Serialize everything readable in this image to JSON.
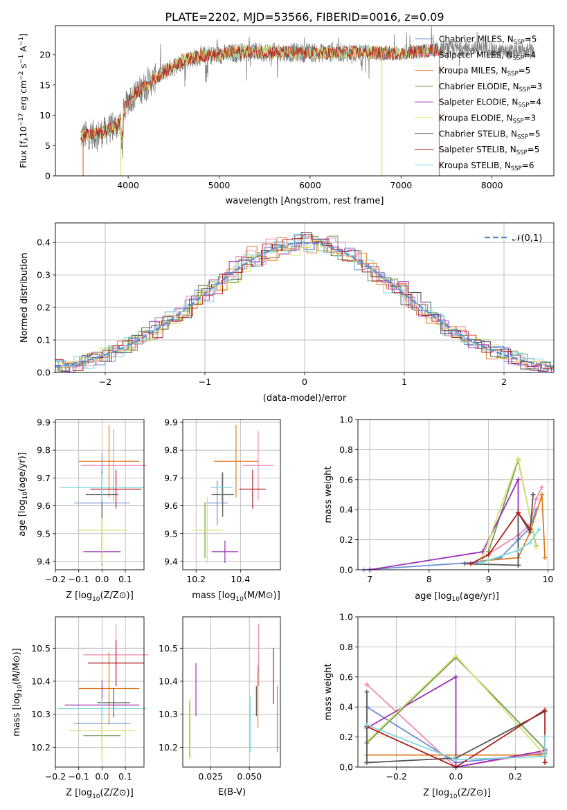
{
  "title": "PLATE=2202, MJD=53566, FIBERID=0016, z=0.09",
  "colors": {
    "Chabrier MILES": "#6b8fd6",
    "Salpeter MILES": "#f08ab4",
    "Kroupa MILES": "#e07a1f",
    "Chabrier ELODIE": "#6a9a55",
    "Salpeter ELODIE": "#9b2fb5",
    "Kroupa ELODIE": "#d8e070",
    "Chabrier STELIB": "#555555",
    "Salpeter STELIB": "#b01c1c",
    "Kroupa STELIB": "#7fd8de"
  },
  "chart_data": [
    {
      "type": "line",
      "id": "spectrum",
      "xlabel": "wavelength [Angstrom, rest frame]",
      "ylabel": "Flux [f_λ10^-17 erg cm^-2 s^-1 A^-1]",
      "xlim": [
        3200,
        8680
      ],
      "ylim": [
        0,
        24.8
      ],
      "xticks": [
        4000,
        5000,
        6000,
        7000,
        8000
      ],
      "yticks": [
        0,
        5,
        10,
        15,
        20
      ],
      "legend_position": "top-right",
      "series": [
        {
          "name": "Chabrier MILES",
          "nssp": 5
        },
        {
          "name": "Salpeter MILES",
          "nssp": 4
        },
        {
          "name": "Kroupa MILES",
          "nssp": 5
        },
        {
          "name": "Chabrier ELODIE",
          "nssp": 3
        },
        {
          "name": "Salpeter ELODIE",
          "nssp": 4
        },
        {
          "name": "Kroupa ELODIE",
          "nssp": 3
        },
        {
          "name": "Chabrier STELIB",
          "nssp": 5
        },
        {
          "name": "Salpeter STELIB",
          "nssp": 5
        },
        {
          "name": "Kroupa STELIB",
          "nssp": 6
        }
      ],
      "continuum": [
        [
          3500,
          6.6
        ],
        [
          3700,
          7.0
        ],
        [
          3900,
          8.5
        ],
        [
          4000,
          12.5
        ],
        [
          4200,
          15.0
        ],
        [
          4400,
          17.2
        ],
        [
          4600,
          19.0
        ],
        [
          4800,
          19.8
        ],
        [
          5000,
          20.0
        ],
        [
          5300,
          20.5
        ],
        [
          5600,
          20.4
        ],
        [
          5900,
          20.3
        ],
        [
          6200,
          20.3
        ],
        [
          6600,
          20.4
        ],
        [
          7000,
          20.2
        ],
        [
          7200,
          20.5
        ],
        [
          7400,
          20.8
        ],
        [
          7500,
          21.0
        ]
      ],
      "data_extent": [
        3480,
        8460
      ]
    },
    {
      "type": "step",
      "id": "residuals",
      "xlabel": "(data-model)/error",
      "ylabel": "Normed distribution",
      "xlim": [
        -2.5,
        2.5
      ],
      "ylim": [
        0,
        0.46
      ],
      "xticks": [
        -2,
        -1,
        0,
        1,
        2
      ],
      "yticks": [
        0.0,
        0.1,
        0.2,
        0.3,
        0.4
      ],
      "grid": true,
      "legend": "𝒩(0,1)",
      "legend_position": "top-right",
      "reference": "normal(0,1) dashed"
    },
    {
      "type": "errorbar",
      "id": "age_vs_Z",
      "xlabel": "Z [log10(Z/Z⊙)]",
      "ylabel": "age [log10(age/yr)]",
      "xlim": [
        -0.2,
        0.18
      ],
      "ylim": [
        9.37,
        9.91
      ],
      "xticks": [
        -0.2,
        -0.1,
        0.0,
        0.1
      ],
      "yticks": [
        9.4,
        9.5,
        9.6,
        9.7,
        9.8,
        9.9
      ],
      "points": [
        {
          "series": "Chabrier MILES",
          "x": 0.0,
          "y": 9.61,
          "xerr": 0.12,
          "yerr": 0.18
        },
        {
          "series": "Salpeter MILES",
          "x": 0.05,
          "y": 9.745,
          "xerr": 0.14,
          "yerr": 0.13
        },
        {
          "series": "Kroupa MILES",
          "x": 0.03,
          "y": 9.76,
          "xerr": 0.13,
          "yerr": 0.13
        },
        {
          "series": "Chabrier ELODIE",
          "x": 0.0,
          "y": 9.512,
          "xerr": 0.1,
          "yerr": 0.1
        },
        {
          "series": "Salpeter ELODIE",
          "x": 0.0,
          "y": 9.435,
          "xerr": 0.08,
          "yerr": 0.05
        },
        {
          "series": "Kroupa ELODIE",
          "x": 0.0,
          "y": 9.512,
          "xerr": 0.11,
          "yerr": 0.12
        },
        {
          "series": "Chabrier STELIB",
          "x": 0.0,
          "y": 9.64,
          "xerr": 0.07,
          "yerr": 0.085
        },
        {
          "series": "Salpeter STELIB",
          "x": 0.06,
          "y": 9.66,
          "xerr": 0.11,
          "yerr": 0.07
        },
        {
          "series": "Kroupa STELIB",
          "x": 0.0,
          "y": 9.665,
          "xerr": 0.18,
          "yerr": 0.05
        }
      ]
    },
    {
      "type": "errorbar",
      "id": "age_vs_mass",
      "xlabel": "mass [log10(M/M⊙)]",
      "ylabel": "",
      "xlim": [
        10.14,
        10.58
      ],
      "ylim": [
        9.37,
        9.91
      ],
      "xticks": [
        10.2,
        10.4
      ],
      "yticks": [
        9.4,
        9.5,
        9.6,
        9.7,
        9.8,
        9.9
      ],
      "points": [
        {
          "series": "Chabrier MILES",
          "x": 10.295,
          "y": 9.61,
          "xerr": 0.05,
          "yerr": 0.08
        },
        {
          "series": "Salpeter MILES",
          "x": 10.48,
          "y": 9.745,
          "xerr": 0.07,
          "yerr": 0.125
        },
        {
          "series": "Kroupa MILES",
          "x": 10.38,
          "y": 9.76,
          "xerr": 0.1,
          "yerr": 0.13
        },
        {
          "series": "Chabrier ELODIE",
          "x": 10.24,
          "y": 9.512,
          "xerr": 0.04,
          "yerr": 0.1
        },
        {
          "series": "Salpeter ELODIE",
          "x": 10.33,
          "y": 9.435,
          "xerr": 0.06,
          "yerr": 0.04
        },
        {
          "series": "Kroupa ELODIE",
          "x": 10.25,
          "y": 9.512,
          "xerr": 0.07,
          "yerr": 0.12
        },
        {
          "series": "Chabrier STELIB",
          "x": 10.32,
          "y": 9.64,
          "xerr": 0.05,
          "yerr": 0.08
        },
        {
          "series": "Salpeter STELIB",
          "x": 10.455,
          "y": 9.66,
          "xerr": 0.06,
          "yerr": 0.07
        },
        {
          "series": "Kroupa STELIB",
          "x": 10.315,
          "y": 9.665,
          "xerr": 0.05,
          "yerr": 0.05
        }
      ]
    },
    {
      "type": "line",
      "id": "mass_weight_vs_age",
      "xlabel": "age [log10(age/yr)]",
      "ylabel": "mass weight",
      "xlim": [
        6.8,
        10.1
      ],
      "ylim": [
        0,
        1.0
      ],
      "xticks": [
        7,
        8,
        9,
        10
      ],
      "yticks": [
        0.0,
        0.2,
        0.4,
        0.6,
        0.8,
        1.0
      ],
      "grid": true,
      "series": [
        {
          "name": "Chabrier MILES",
          "points": [
            [
              6.9,
              0.0
            ],
            [
              8.8,
              0.05
            ],
            [
              9.2,
              0.08
            ],
            [
              9.5,
              0.2
            ],
            [
              9.7,
              0.28
            ],
            [
              9.8,
              0.4
            ]
          ]
        },
        {
          "name": "Salpeter MILES",
          "points": [
            [
              8.9,
              0.08
            ],
            [
              9.5,
              0.23
            ],
            [
              9.7,
              0.3
            ],
            [
              9.8,
              0.47
            ],
            [
              9.9,
              0.55
            ]
          ]
        },
        {
          "name": "Kroupa MILES",
          "points": [
            [
              8.9,
              0.06
            ],
            [
              9.5,
              0.08
            ],
            [
              9.7,
              0.25
            ],
            [
              9.9,
              0.5
            ],
            [
              9.95,
              0.08
            ]
          ]
        },
        {
          "name": "Chabrier ELODIE",
          "points": [
            [
              9.0,
              0.12
            ],
            [
              9.5,
              0.73
            ],
            [
              9.8,
              0.16
            ]
          ]
        },
        {
          "name": "Salpeter ELODIE",
          "points": [
            [
              7.0,
              0.0
            ],
            [
              8.9,
              0.12
            ],
            [
              9.5,
              0.6
            ],
            [
              9.5,
              0.03
            ]
          ]
        },
        {
          "name": "Kroupa ELODIE",
          "points": [
            [
              8.9,
              0.08
            ],
            [
              9.5,
              0.74
            ],
            [
              9.8,
              0.15
            ]
          ]
        },
        {
          "name": "Chabrier STELIB",
          "points": [
            [
              8.6,
              0.04
            ],
            [
              9.5,
              0.03
            ],
            [
              9.5,
              0.38
            ],
            [
              9.7,
              0.25
            ],
            [
              9.75,
              0.5
            ]
          ]
        },
        {
          "name": "Salpeter STELIB",
          "points": [
            [
              8.7,
              0.04
            ],
            [
              9.0,
              0.1
            ],
            [
              9.5,
              0.38
            ],
            [
              9.7,
              0.27
            ]
          ]
        },
        {
          "name": "Kroupa STELIB",
          "points": [
            [
              8.9,
              0.05
            ],
            [
              9.5,
              0.13
            ],
            [
              9.7,
              0.18
            ],
            [
              9.85,
              0.27
            ]
          ]
        }
      ]
    },
    {
      "type": "errorbar",
      "id": "mass_vs_Z",
      "xlabel": "Z [log10(Z/Z⊙)]",
      "ylabel": "mass [log10(M/M⊙)]",
      "xlim": [
        -0.2,
        0.18
      ],
      "ylim": [
        10.14,
        10.595
      ],
      "xticks": [
        -0.2,
        -0.1,
        0.0,
        0.1
      ],
      "yticks": [
        10.2,
        10.3,
        10.4,
        10.5
      ],
      "points": [
        {
          "series": "Chabrier MILES",
          "x": 0.0,
          "y": 10.272,
          "xerr": 0.12,
          "yerr": 0.05
        },
        {
          "series": "Salpeter MILES",
          "x": 0.06,
          "y": 10.48,
          "xerr": 0.14,
          "yerr": 0.095
        },
        {
          "series": "Kroupa MILES",
          "x": 0.03,
          "y": 10.378,
          "xerr": 0.13,
          "yerr": 0.11
        },
        {
          "series": "Chabrier ELODIE",
          "x": 0.0,
          "y": 10.235,
          "xerr": 0.08,
          "yerr": 0.05
        },
        {
          "series": "Salpeter ELODIE",
          "x": 0.0,
          "y": 10.328,
          "xerr": 0.16,
          "yerr": 0.075
        },
        {
          "series": "Kroupa ELODIE",
          "x": 0.0,
          "y": 10.25,
          "xerr": 0.14,
          "yerr": 0.09
        },
        {
          "series": "Chabrier STELIB",
          "x": 0.05,
          "y": 10.335,
          "xerr": 0.07,
          "yerr": 0.045
        },
        {
          "series": "Salpeter STELIB",
          "x": 0.06,
          "y": 10.455,
          "xerr": 0.12,
          "yerr": 0.07
        },
        {
          "series": "Kroupa STELIB",
          "x": 0.0,
          "y": 10.317,
          "xerr": 0.19,
          "yerr": 0.03
        }
      ]
    },
    {
      "type": "errorbar",
      "id": "mass_vs_EBV",
      "xlabel": "E(B-V)",
      "ylabel": "",
      "xlim": [
        0.007,
        0.07
      ],
      "ylim": [
        10.14,
        10.595
      ],
      "xticks": [
        0.025,
        0.05
      ],
      "yticks": [
        10.2,
        10.3,
        10.4,
        10.5
      ],
      "points": [
        {
          "series": "Chabrier MILES",
          "x": 0.068,
          "y": 10.285,
          "yerr": 0.1
        },
        {
          "series": "Salpeter MILES",
          "x": 0.056,
          "y": 10.48,
          "yerr": 0.095
        },
        {
          "series": "Kroupa MILES",
          "x": 0.0555,
          "y": 10.355,
          "yerr": 0.095
        },
        {
          "series": "Chabrier ELODIE",
          "x": 0.0115,
          "y": 10.255,
          "yerr": 0.085
        },
        {
          "series": "Salpeter ELODIE",
          "x": 0.0155,
          "y": 10.375,
          "yerr": 0.08
        },
        {
          "series": "Kroupa ELODIE",
          "x": 0.0118,
          "y": 10.255,
          "yerr": 0.095
        },
        {
          "series": "Chabrier STELIB",
          "x": 0.0545,
          "y": 10.34,
          "yerr": 0.045
        },
        {
          "series": "Salpeter STELIB",
          "x": 0.0655,
          "y": 10.415,
          "yerr": 0.085
        },
        {
          "series": "Kroupa STELIB",
          "x": 0.0505,
          "y": 10.27,
          "yerr": 0.085
        }
      ]
    },
    {
      "type": "line",
      "id": "mass_weight_vs_Z",
      "xlabel": "Z [log10(Z/Z⊙)]",
      "ylabel": "mass weight",
      "xlim": [
        -0.33,
        0.33
      ],
      "ylim": [
        0,
        1.0
      ],
      "xticks": [
        -0.2,
        0.0,
        0.2
      ],
      "yticks": [
        0.0,
        0.2,
        0.4,
        0.6,
        0.8,
        1.0
      ],
      "grid": true,
      "series": [
        {
          "name": "Chabrier MILES",
          "points": [
            [
              -0.3,
              0.4
            ],
            [
              0.0,
              0.03
            ],
            [
              0.3,
              0.09
            ]
          ]
        },
        {
          "name": "Salpeter MILES",
          "points": [
            [
              -0.3,
              0.55
            ],
            [
              0.0,
              0.0
            ],
            [
              0.3,
              0.1
            ]
          ]
        },
        {
          "name": "Kroupa MILES",
          "points": [
            [
              -0.3,
              0.08
            ],
            [
              0.0,
              0.08
            ],
            [
              0.3,
              0.08
            ]
          ]
        },
        {
          "name": "Chabrier ELODIE",
          "points": [
            [
              -0.3,
              0.16
            ],
            [
              0.0,
              0.73
            ],
            [
              0.3,
              0.12
            ]
          ]
        },
        {
          "name": "Salpeter ELODIE",
          "points": [
            [
              -0.3,
              0.26
            ],
            [
              0.0,
              0.6
            ],
            [
              0.0,
              0.0
            ],
            [
              0.3,
              0.11
            ]
          ]
        },
        {
          "name": "Kroupa ELODIE",
          "points": [
            [
              -0.3,
              0.17
            ],
            [
              0.0,
              0.74
            ],
            [
              0.3,
              0.08
            ]
          ]
        },
        {
          "name": "Chabrier STELIB",
          "points": [
            [
              -0.3,
              0.5
            ],
            [
              -0.3,
              0.03
            ],
            [
              0.0,
              0.06
            ],
            [
              0.3,
              0.37
            ]
          ]
        },
        {
          "name": "Salpeter STELIB",
          "points": [
            [
              -0.3,
              0.27
            ],
            [
              0.0,
              0.0
            ],
            [
              0.3,
              0.38
            ],
            [
              0.3,
              0.03
            ]
          ]
        },
        {
          "name": "Kroupa STELIB",
          "points": [
            [
              -0.3,
              0.28
            ],
            [
              0.0,
              0.05
            ],
            [
              0.3,
              0.07
            ],
            [
              0.3,
              0.2
            ]
          ]
        }
      ]
    }
  ]
}
